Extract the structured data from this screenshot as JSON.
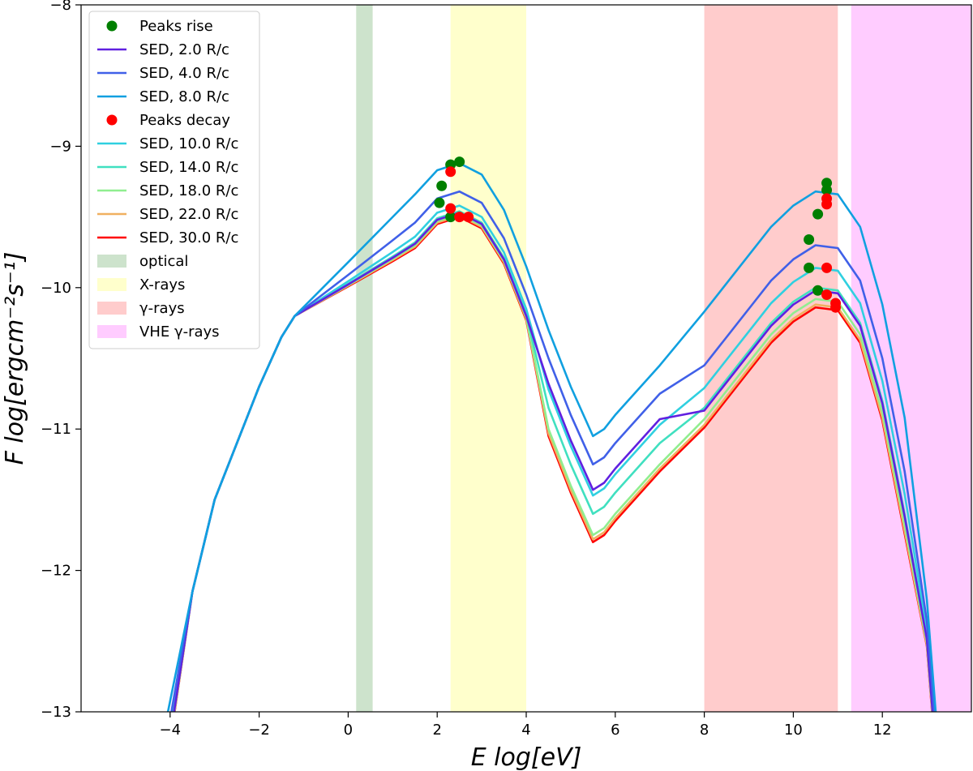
{
  "chart_data": {
    "type": "line",
    "xlabel": "E log[eV]",
    "ylabel": "F log[ergcm⁻²s⁻¹]",
    "xlim": [
      -6.0,
      14.0
    ],
    "ylim": [
      -13.0,
      -8.0
    ],
    "xticks": [
      -4,
      -2,
      0,
      2,
      4,
      6,
      8,
      10,
      12
    ],
    "xtick_labels": [
      "−4",
      "−2",
      "0",
      "2",
      "4",
      "6",
      "8",
      "10",
      "12"
    ],
    "yticks": [
      -13,
      -12,
      -11,
      -10,
      -9,
      -8
    ],
    "ytick_labels": [
      "−13",
      "−12",
      "−11",
      "−10",
      "−9",
      "−8"
    ],
    "grid": false,
    "legend_position": "top-left",
    "bands": [
      {
        "name": "optical",
        "range": [
          0.18,
          0.55
        ],
        "color": "#cde3cc"
      },
      {
        "name": "X-rays",
        "range": [
          2.3,
          4.0
        ],
        "color": "#ffffcc"
      },
      {
        "name": "γ-rays",
        "range": [
          8.0,
          11.0
        ],
        "color": "#ffcccc"
      },
      {
        "name": "VHE γ-rays",
        "range": [
          11.3,
          14.0
        ],
        "color": "#ffccff"
      }
    ],
    "series_template": {
      "x": [
        -4.05,
        -3.5,
        -3.0,
        -2.0,
        -1.5,
        -1.2,
        0.0,
        1.0,
        1.5,
        2.0,
        2.5,
        3.0,
        3.5,
        4.0,
        4.5,
        5.0,
        5.5,
        5.75,
        6.0,
        7.0,
        8.0,
        9.0,
        9.5,
        10.0,
        10.5,
        11.0,
        11.5,
        12.0,
        12.5,
        13.0,
        13.2
      ],
      "base": [
        -13.0,
        -12.15,
        -11.5,
        -10.7,
        -10.35,
        -10.2,
        -9.82,
        -9.5,
        -9.34,
        -9.17,
        -9.12,
        -9.2,
        -9.45,
        -9.85,
        -10.3,
        -10.7,
        -11.05,
        -11.0,
        -10.9,
        -10.55,
        -10.15,
        -9.75,
        -9.55,
        -9.4,
        -9.3,
        -9.32,
        -9.55,
        -10.1,
        -10.9,
        -12.2,
        -13.0
      ],
      "transition_point_x": 5.5
    },
    "series": [
      {
        "name": "SED, 30.0 R/c",
        "color": "#ff0000",
        "low_d": 0.38,
        "high_d": 0.84,
        "mid_d": 0.75
      },
      {
        "name": "SED, 22.0 R/c",
        "color": "#f0b060",
        "low_d": 0.37,
        "high_d": 0.82,
        "mid_d": 0.73
      },
      {
        "name": "SED, 18.0 R/c",
        "color": "#90ee90",
        "low_d": 0.36,
        "high_d": 0.78,
        "mid_d": 0.7
      },
      {
        "name": "SED, 14.0 R/c",
        "color": "#40e0c0",
        "low_d": 0.34,
        "high_d": 0.7,
        "mid_d": 0.55
      },
      {
        "name": "SED, 10.0 R/c",
        "color": "#30d0e0",
        "low_d": 0.3,
        "high_d": 0.56,
        "mid_d": 0.42
      },
      {
        "name": "SED, 2.0 R/c",
        "color": "#6020e0",
        "low_d": 0.35,
        "high_d": 0.72,
        "mid_d": 0.38
      },
      {
        "name": "SED, 4.0 R/c",
        "color": "#4060e8",
        "low_d": 0.2,
        "high_d": 0.4,
        "mid_d": 0.2
      },
      {
        "name": "SED, 8.0 R/c",
        "color": "#10a0e0",
        "low_d": 0.0,
        "high_d": 0.02,
        "mid_d": 0.0
      }
    ],
    "peaks_rise": {
      "name": "Peaks rise",
      "color": "#007f00",
      "points": [
        [
          2.3,
          -9.13
        ],
        [
          2.5,
          -9.11
        ],
        [
          2.1,
          -9.28
        ],
        [
          2.05,
          -9.4
        ],
        [
          2.3,
          -9.5
        ],
        [
          10.75,
          -9.26
        ],
        [
          10.75,
          -9.31
        ],
        [
          10.55,
          -9.48
        ],
        [
          10.35,
          -9.66
        ],
        [
          10.35,
          -9.86
        ],
        [
          10.55,
          -10.02
        ]
      ]
    },
    "peaks_decay": {
      "name": "Peaks decay",
      "color": "#ff0000",
      "points": [
        [
          2.3,
          -9.18
        ],
        [
          2.3,
          -9.44
        ],
        [
          2.5,
          -9.5
        ],
        [
          2.7,
          -9.5
        ],
        [
          10.75,
          -9.37
        ],
        [
          10.75,
          -9.41
        ],
        [
          10.75,
          -9.86
        ],
        [
          10.75,
          -10.05
        ],
        [
          10.95,
          -10.11
        ],
        [
          10.95,
          -10.14
        ]
      ]
    },
    "legend_entries": [
      {
        "label": "Peaks rise",
        "kind": "marker",
        "color": "#007f00"
      },
      {
        "label": "SED, 2.0 R/c",
        "kind": "line",
        "color": "#6020e0"
      },
      {
        "label": "SED, 4.0 R/c",
        "kind": "line",
        "color": "#4060e8"
      },
      {
        "label": "SED, 8.0 R/c",
        "kind": "line",
        "color": "#10a0e0"
      },
      {
        "label": "Peaks decay",
        "kind": "marker",
        "color": "#ff0000"
      },
      {
        "label": "SED, 10.0 R/c",
        "kind": "line",
        "color": "#30d0e0"
      },
      {
        "label": "SED, 14.0 R/c",
        "kind": "line",
        "color": "#40e0c0"
      },
      {
        "label": "SED, 18.0 R/c",
        "kind": "line",
        "color": "#90ee90"
      },
      {
        "label": "SED, 22.0 R/c",
        "kind": "line",
        "color": "#f0b060"
      },
      {
        "label": "SED, 30.0 R/c",
        "kind": "line",
        "color": "#ff0000"
      },
      {
        "label": "optical",
        "kind": "patch",
        "color": "#cde3cc"
      },
      {
        "label": "X-rays",
        "kind": "patch",
        "color": "#ffffcc"
      },
      {
        "label": "γ-rays",
        "kind": "patch",
        "color": "#ffcccc"
      },
      {
        "label": "VHE γ-rays",
        "kind": "patch",
        "color": "#ffccff"
      }
    ]
  }
}
